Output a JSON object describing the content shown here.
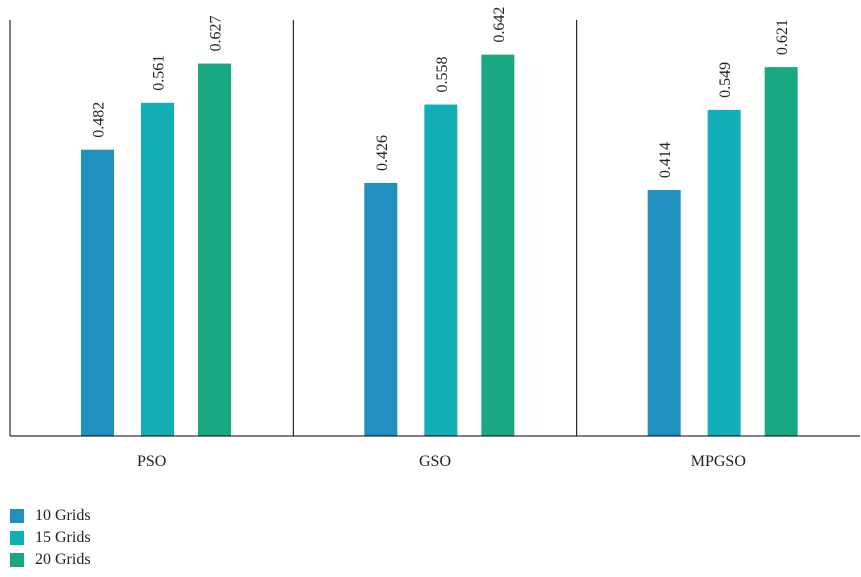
{
  "chart_data": {
    "type": "bar",
    "title": "",
    "xlabel": "",
    "ylabel": "",
    "categories": [
      "PSO",
      "GSO",
      "MPGSO"
    ],
    "series": [
      {
        "name": "10 Grids",
        "color": "#2090BE",
        "values": [
          0.482,
          0.426,
          0.414
        ]
      },
      {
        "name": "15 Grids",
        "color": "#12AEB5",
        "values": [
          0.561,
          0.558,
          0.549
        ]
      },
      {
        "name": "20 Grids",
        "color": "#19A882",
        "values": [
          0.627,
          0.642,
          0.621
        ]
      }
    ],
    "data_labels": {
      "series_0": [
        "0.482",
        "0.426",
        "0.414"
      ],
      "series_1": [
        "0.561",
        "0.558",
        "0.549"
      ],
      "series_2": [
        "0.627",
        "0.642",
        "0.621"
      ]
    },
    "ylim": [
      0,
      0.7
    ],
    "grid": false,
    "legend_position": "bottom-left"
  }
}
